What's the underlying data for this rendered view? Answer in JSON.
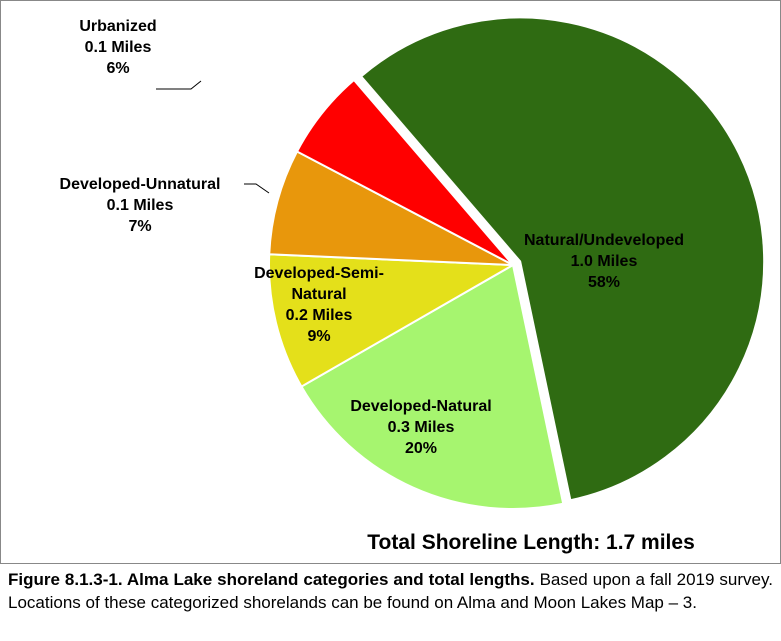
{
  "chart_data": {
    "type": "pie",
    "title": "Total Shoreline Length: 1.7 miles",
    "categories": [
      "Natural/Undeveloped",
      "Developed-Natural",
      "Developed-Semi-Natural",
      "Developed-Unnatural",
      "Urbanized"
    ],
    "values": [
      58,
      20,
      9,
      7,
      6
    ],
    "value_labels": [
      "58%",
      "20%",
      "9%",
      "7%",
      "6%"
    ],
    "length_labels": [
      "1.0 Miles",
      "0.3 Miles",
      "0.2 Miles",
      "0.1 Miles",
      "0.1 Miles"
    ],
    "colors": [
      "#2f6b12",
      "#a6f56f",
      "#e4e01a",
      "#e8970c",
      "#ff0000"
    ]
  },
  "caption": {
    "title": "Figure 8.1.3-1.  Alma Lake shoreland categories and total lengths.",
    "text": "Based upon a fall 2019 survey.  Locations of these categorized shorelands can be found on Alma and Moon Lakes Map – 3."
  }
}
